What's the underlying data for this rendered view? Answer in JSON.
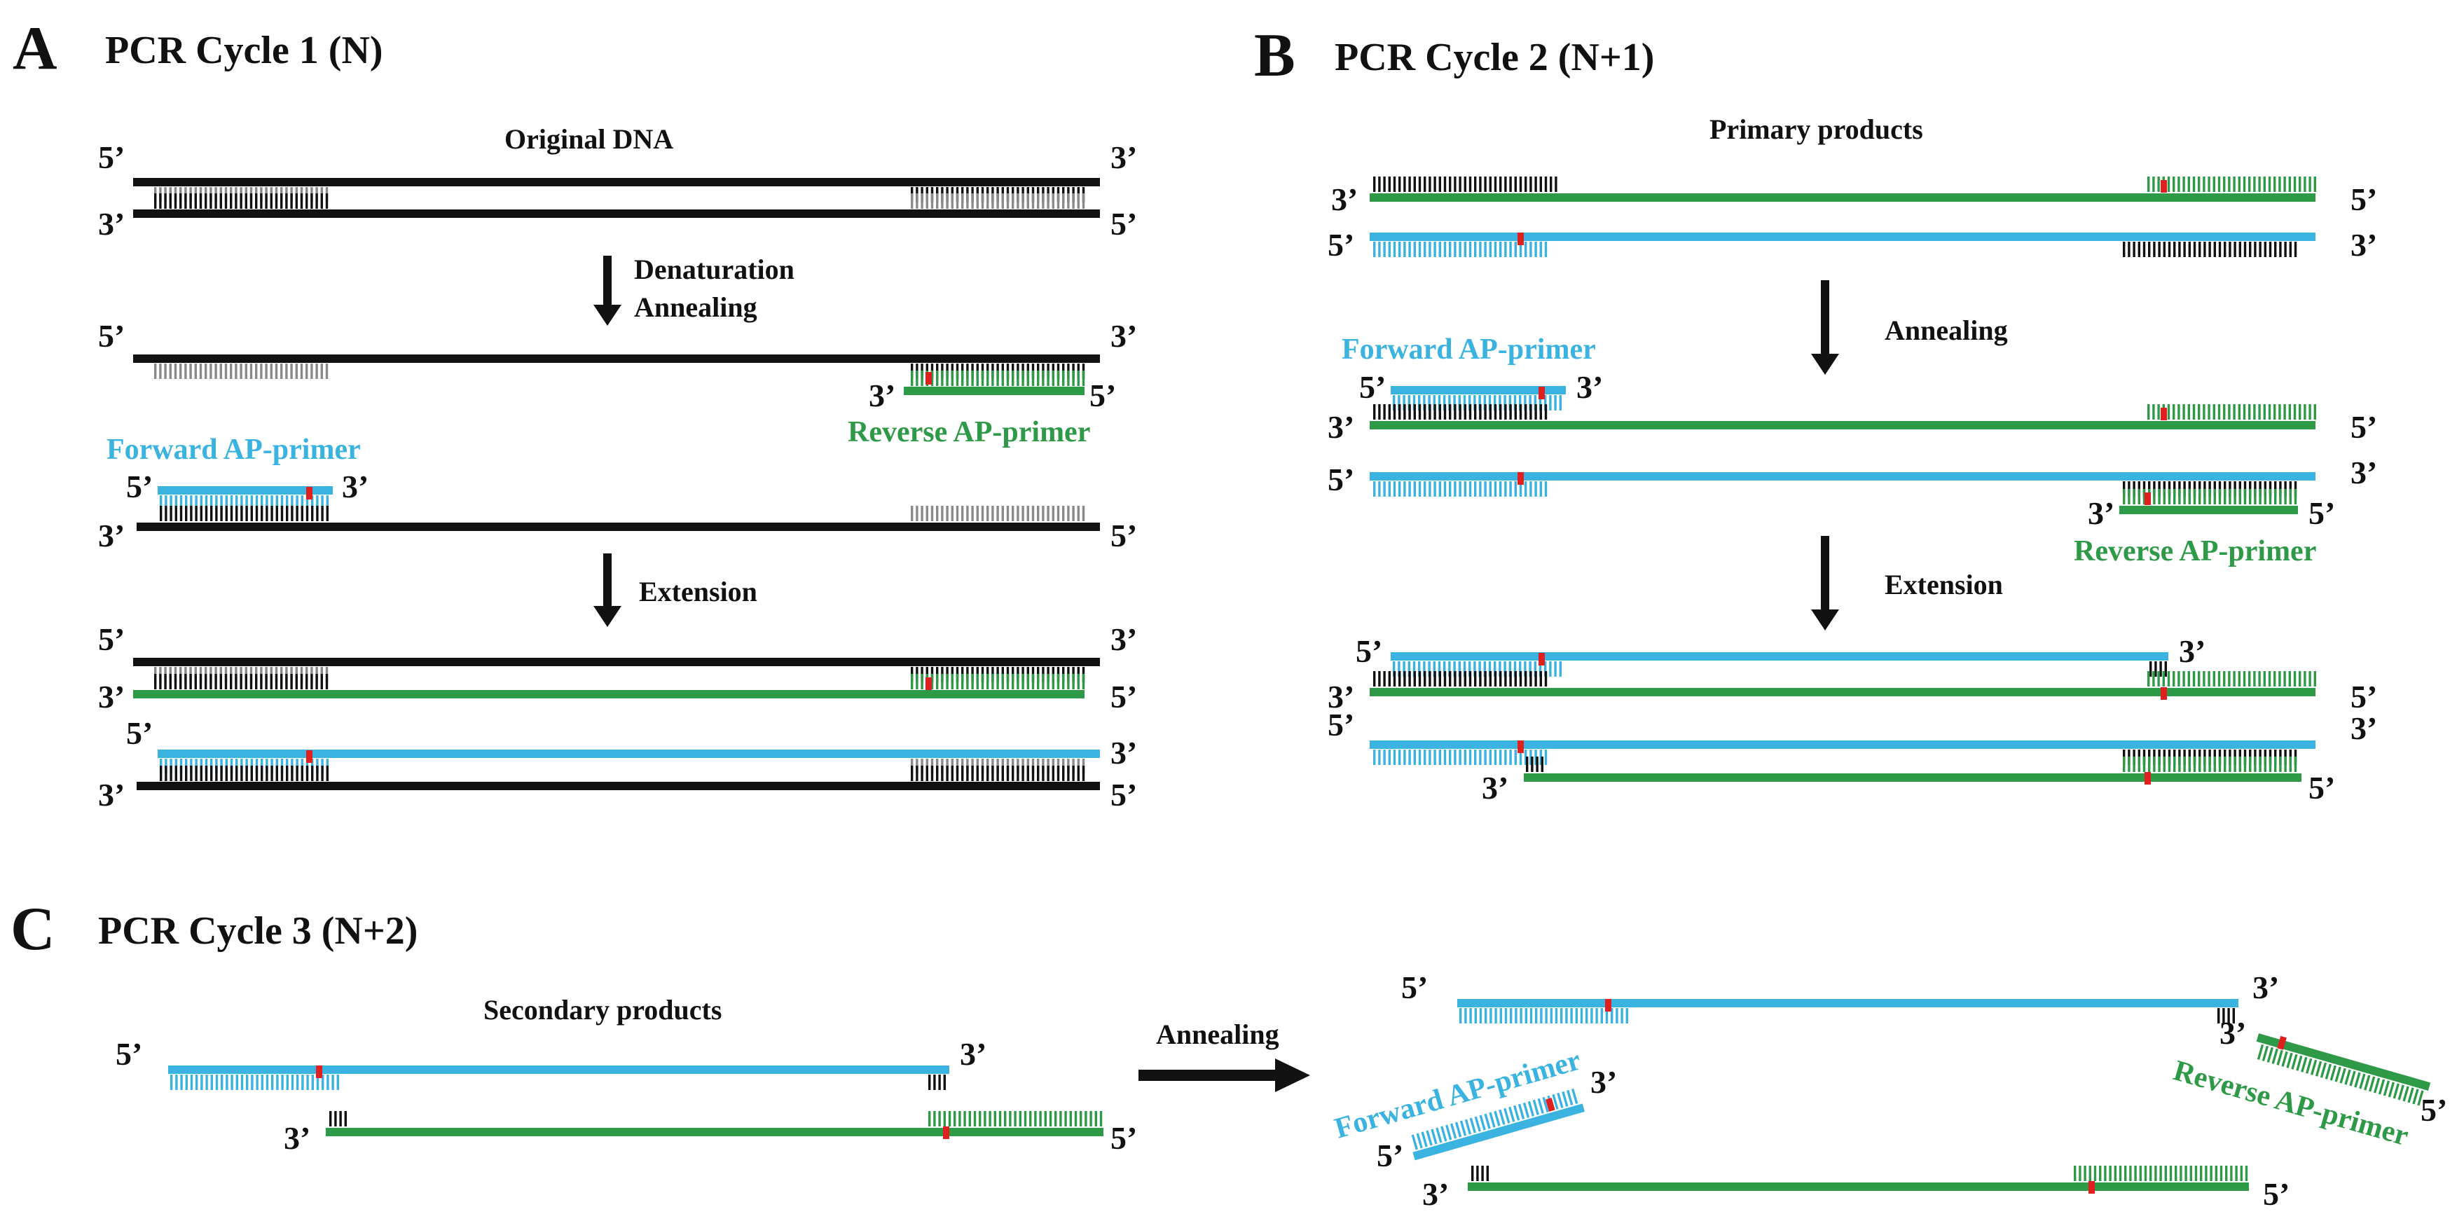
{
  "colors": {
    "blue": "#3bb3e0",
    "green": "#2e9a47",
    "black": "#111111",
    "grey": "#8a8a8a",
    "red": "#e02020"
  },
  "ends": {
    "five": "5’",
    "three": "3’"
  },
  "panelA": {
    "letter": "A",
    "title": "PCR Cycle 1 (N)",
    "subtitle": "Original DNA",
    "step1a": "Denaturation",
    "step1b": "Annealing",
    "step2": "Extension",
    "forward_primer": "Forward AP-primer",
    "reverse_primer": "Reverse AP-primer"
  },
  "panelB": {
    "letter": "B",
    "title": "PCR Cycle 2 (N+1)",
    "subtitle": "Primary products",
    "step1": "Annealing",
    "step2": "Extension",
    "forward_primer": "Forward AP-primer",
    "reverse_primer": "Reverse AP-primer"
  },
  "panelC": {
    "letter": "C",
    "title": "PCR Cycle 3 (N+2)",
    "subtitle": "Secondary products",
    "step1": "Annealing",
    "forward_primer": "Forward AP-primer",
    "reverse_primer": "Reverse AP-primer"
  }
}
